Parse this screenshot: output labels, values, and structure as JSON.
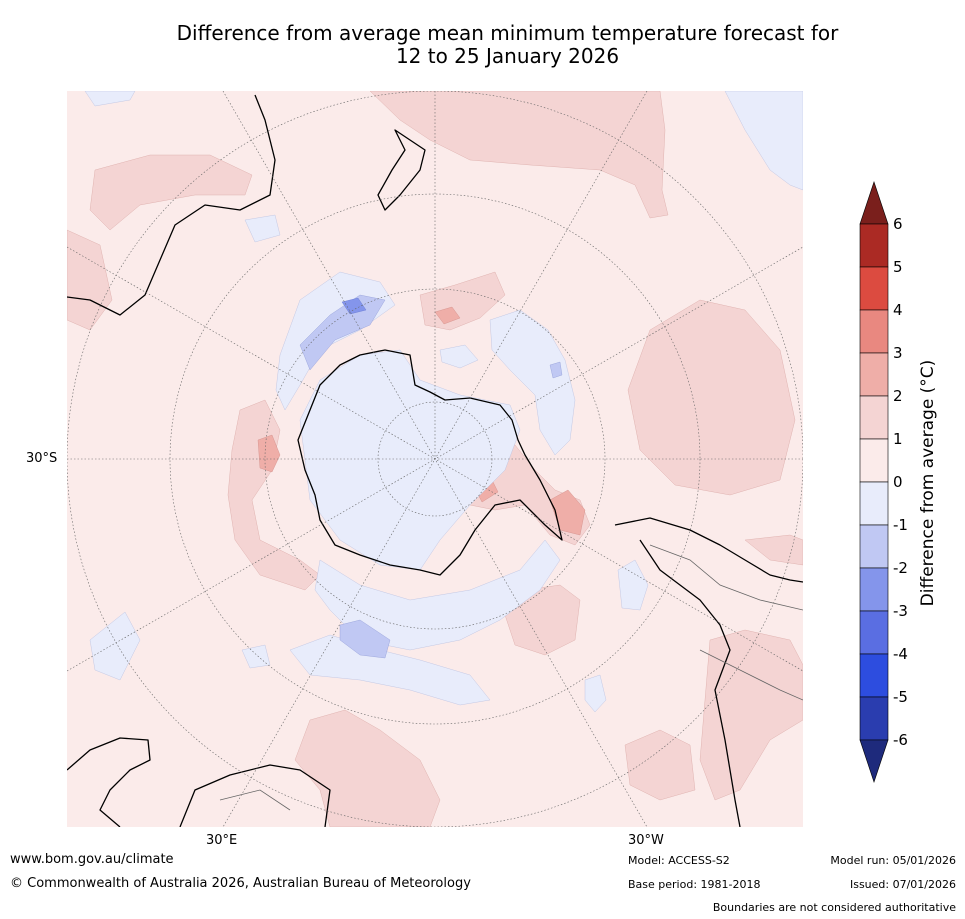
{
  "title_line1": "Difference from average mean minimum temperature forecast for",
  "title_line2": "12 to 25 January 2026",
  "map": {
    "projection": "south polar stereographic",
    "graticule": {
      "lat_label": "30°S",
      "lon_label_east": "30°E",
      "lon_label_west": "30°W"
    }
  },
  "colorbar": {
    "title": "Difference from average (°C)",
    "ticks": [
      "6",
      "5",
      "4",
      "3",
      "2",
      "1",
      "0",
      "-1",
      "-2",
      "-3",
      "-4",
      "-5",
      "-6"
    ],
    "bins": [
      {
        "range": "above 6",
        "color": "#7a1f1c"
      },
      {
        "range": "5 to 6",
        "color": "#ab2a24"
      },
      {
        "range": "4 to 5",
        "color": "#dc4b40"
      },
      {
        "range": "3 to 4",
        "color": "#e98880"
      },
      {
        "range": "2 to 3",
        "color": "#efaea8"
      },
      {
        "range": "1 to 2",
        "color": "#f4d4d3"
      },
      {
        "range": "0 to 1",
        "color": "#fbebea"
      },
      {
        "range": "-1 to 0",
        "color": "#e8ecfb"
      },
      {
        "range": "-2 to -1",
        "color": "#c0c8f3"
      },
      {
        "range": "-3 to -2",
        "color": "#8495eb"
      },
      {
        "range": "-4 to -3",
        "color": "#5a6ee2"
      },
      {
        "range": "-5 to -4",
        "color": "#2d4ddf"
      },
      {
        "range": "-6 to -5",
        "color": "#2a3daf"
      },
      {
        "range": "below -6",
        "color": "#1e2a7c"
      }
    ]
  },
  "footer": {
    "website": "www.bom.gov.au/climate",
    "copyright": "© Commonwealth of Australia 2026, Australian Bureau of Meteorology",
    "model": "Model: ACCESS-S2",
    "base_period": "Base period: 1981-2018",
    "model_run": "Model run: 05/01/2026",
    "issued": "Issued: 07/01/2026",
    "disclaimer": "Boundaries are not considered authoritative"
  }
}
